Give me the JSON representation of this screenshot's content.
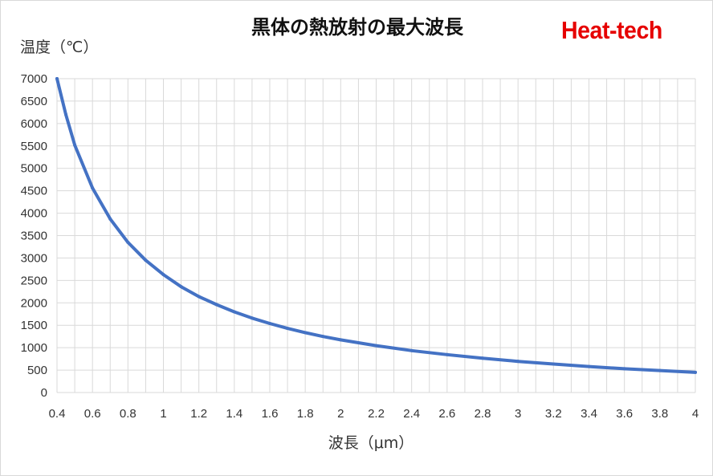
{
  "chart_data": {
    "type": "line",
    "title": "黒体の熱放射の最大波長",
    "ylabel": "温度（℃）",
    "xlabel": "波長（μm）",
    "xlim": [
      0.4,
      4.0
    ],
    "ylim": [
      0,
      7000
    ],
    "grid": true,
    "legend": "none",
    "x_ticks": [
      "0.4",
      "0.6",
      "0.8",
      "1",
      "1.2",
      "1.4",
      "1.6",
      "1.8",
      "2",
      "2.2",
      "2.4",
      "2.6",
      "2.8",
      "3",
      "3.2",
      "3.4",
      "3.6",
      "3.8",
      "4"
    ],
    "y_ticks": [
      "0",
      "500",
      "1000",
      "1500",
      "2000",
      "2500",
      "3000",
      "3500",
      "4000",
      "4500",
      "5000",
      "5500",
      "6000",
      "6500",
      "7000"
    ],
    "series": [
      {
        "color": "#4472c4",
        "x": [
          0.4,
          0.45,
          0.5,
          0.6,
          0.7,
          0.8,
          0.9,
          1.0,
          1.1,
          1.2,
          1.3,
          1.4,
          1.5,
          1.6,
          1.7,
          1.8,
          1.9,
          2.0,
          2.2,
          2.4,
          2.6,
          2.8,
          3.0,
          3.2,
          3.4,
          3.6,
          3.8,
          4.0
        ],
        "values": [
          7000,
          6200,
          5520,
          4560,
          3870,
          3350,
          2950,
          2630,
          2360,
          2140,
          1960,
          1800,
          1660,
          1540,
          1430,
          1335,
          1250,
          1175,
          1045,
          935,
          845,
          765,
          695,
          635,
          580,
          530,
          490,
          450
        ]
      }
    ]
  },
  "brand": {
    "text": "Heat-tech",
    "color": "#e60000"
  }
}
